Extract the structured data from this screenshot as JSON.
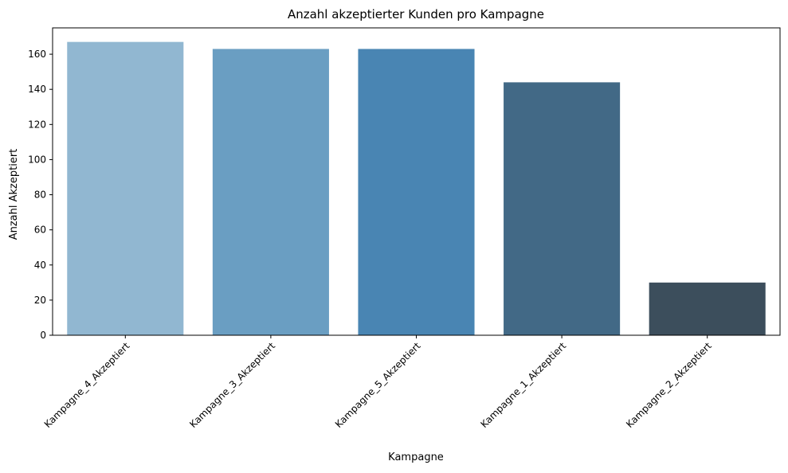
{
  "chart_data": {
    "type": "bar",
    "title": "Anzahl akzeptierter Kunden pro Kampagne",
    "xlabel": "Kampagne",
    "ylabel": "Anzahl Akzeptiert",
    "categories": [
      "Kampagne_4_Akzeptiert",
      "Kampagne_3_Akzeptiert",
      "Kampagne_5_Akzeptiert",
      "Kampagne_1_Akzeptiert",
      "Kampagne_2_Akzeptiert"
    ],
    "values": [
      167,
      163,
      163,
      144,
      30
    ],
    "colors": [
      "#91b7d1",
      "#6a9ec2",
      "#4985b3",
      "#426986",
      "#3c4e5c"
    ],
    "ylim": [
      0,
      175
    ],
    "yticks": [
      0,
      20,
      40,
      60,
      80,
      100,
      120,
      140,
      160
    ],
    "grid": false,
    "legend": "none"
  }
}
